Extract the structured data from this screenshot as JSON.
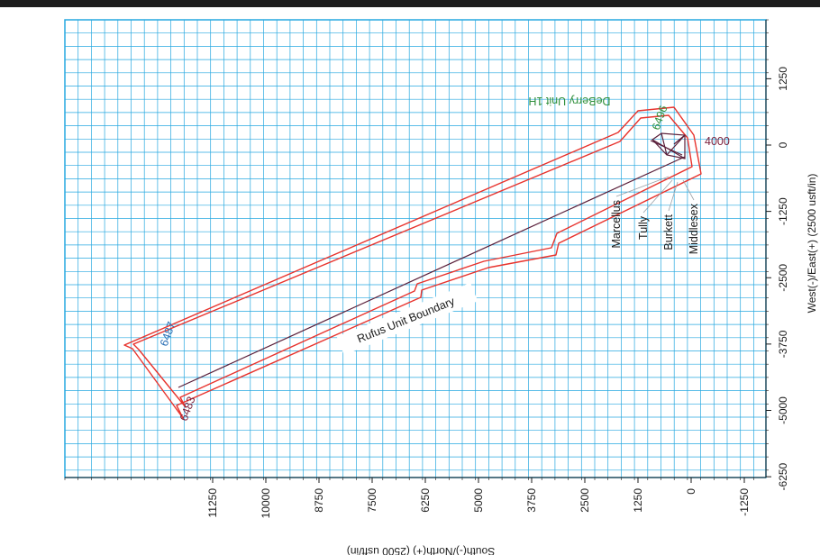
{
  "x_axis": {
    "title": "South(-)/North(+) (2500 usft/in)",
    "ticks": [
      "11250",
      "10000",
      "8750",
      "7500",
      "6250",
      "5000",
      "3750",
      "2500",
      "1250",
      "0",
      "-1250"
    ]
  },
  "y_axis": {
    "title": "West(-)/East(+) (2500 usft/in)",
    "ticks": [
      "1250",
      "0",
      "-1250",
      "-2500",
      "-3750",
      "-5000",
      "-6250"
    ]
  },
  "labels": {
    "well_name": "DeBerry Unit 1H",
    "unit_boundary": "Rufus Unit Boundary",
    "depth_4000": "4000",
    "depth_6487": "6487",
    "depth_6483": "6483",
    "depth_top": "6496",
    "formations": [
      "Marcellus",
      "Tully",
      "Burkett",
      "Middlesex"
    ]
  },
  "colors": {
    "grid": "#27a8e0",
    "boundary": "#e8332d",
    "wellpath": "#5a1f3a",
    "well_label": "#2f8f3a",
    "depth_blue": "#2a6fb5",
    "depth_maroon": "#7a1f3a"
  }
}
